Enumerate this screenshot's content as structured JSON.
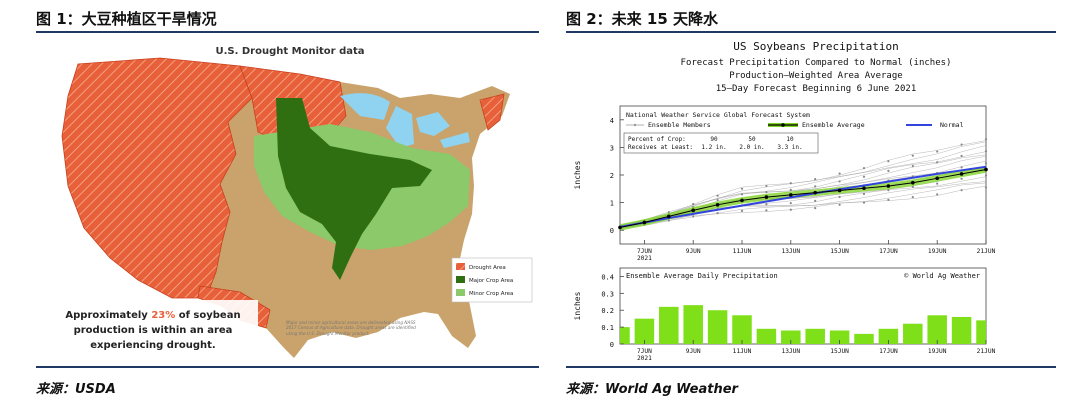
{
  "left": {
    "title": "图 1：大豆种植区干旱情况",
    "source": "来源：USDA",
    "map": {
      "heading": "U.S. Drought Monitor data",
      "legend": [
        "Drought Area",
        "Major Crop Area",
        "Minor Crop Area"
      ],
      "annotation_line1": "Approximately ",
      "annotation_pct": "23%",
      "annotation_line1b": " of soybean",
      "annotation_line2": "production is within an area",
      "annotation_line3": "experiencing drought.",
      "footnote": "Major and minor agricultural areas are delineated using NASS 2017 Census of Agriculture data. Drought areas are identified using the U.S. Drought Monitor product.",
      "colors": {
        "land": "#c9a36b",
        "drought": "#e8603a",
        "major": "#2f6f12",
        "minor": "#8bc96a",
        "water": "#8fd3f0"
      }
    }
  },
  "right": {
    "title": "图 2：未来 15 天降水",
    "source": "来源：World Ag Weather"
  },
  "chart_data": [
    {
      "type": "line",
      "title": "US Soybeans Precipitation",
      "subtitle_lines": [
        "Forecast Precipitation Compared to Normal (inches)",
        "Production–Weighted Area Average",
        "15–Day Forecast Beginning 6 June 2021"
      ],
      "ylabel": "inches",
      "ylim": [
        -0.5,
        4.5
      ],
      "yticks": [
        0,
        1,
        2,
        3,
        4
      ],
      "x_tick_labels": [
        "7JUN",
        "9JUN",
        "11JUN",
        "13JUN",
        "15JUN",
        "17JUN",
        "19JUN",
        "21JUN"
      ],
      "year_label": "2021",
      "x_days": [
        6,
        7,
        8,
        9,
        10,
        11,
        12,
        13,
        14,
        15,
        16,
        17,
        18,
        19,
        20,
        21
      ],
      "legend_header": "National Weather Service Global Forecast System",
      "legend": [
        "Ensemble Members",
        "Ensemble Average",
        "Normal"
      ],
      "percent_table": {
        "row1_label": "Percent of Crop:",
        "row1": [
          "90",
          "50",
          "10"
        ],
        "row2_label": "Receives at Least:",
        "row2": [
          "1.2 in.",
          "2.0 in.",
          "3.3 in."
        ]
      },
      "series": [
        {
          "name": "Ensemble Average",
          "values": [
            0.1,
            0.28,
            0.5,
            0.72,
            0.92,
            1.08,
            1.2,
            1.28,
            1.36,
            1.44,
            1.52,
            1.6,
            1.72,
            1.88,
            2.04,
            2.2
          ]
        },
        {
          "name": "Normal",
          "values": [
            0.12,
            0.28,
            0.44,
            0.59,
            0.74,
            0.89,
            1.04,
            1.19,
            1.34,
            1.48,
            1.62,
            1.76,
            1.9,
            2.04,
            2.17,
            2.3
          ]
        }
      ],
      "member_spread": {
        "low": [
          0.1,
          0.2,
          0.35,
          0.5,
          0.62,
          0.7,
          0.72,
          0.74,
          0.8,
          0.92,
          1.0,
          1.1,
          1.2,
          1.3,
          1.45,
          1.55
        ],
        "high": [
          0.12,
          0.35,
          0.65,
          0.95,
          1.25,
          1.5,
          1.6,
          1.7,
          1.85,
          2.05,
          2.25,
          2.5,
          2.7,
          2.85,
          3.1,
          3.3
        ]
      },
      "colors": {
        "ensemble_avg": "#000000",
        "normal": "#3344dd",
        "members": "#999999",
        "highlight": "#7ed321"
      }
    },
    {
      "type": "bar",
      "title": "Ensemble Average Daily Precipitation",
      "credit": "© World Ag Weather",
      "ylabel": "inches",
      "ylim": [
        0,
        0.45
      ],
      "yticks": [
        0,
        0.1,
        0.2,
        0.3,
        0.4
      ],
      "x_tick_labels": [
        "7JUN",
        "9JUN",
        "11JUN",
        "13JUN",
        "15JUN",
        "17JUN",
        "19JUN",
        "21JUN"
      ],
      "year_label": "2021",
      "categories": [
        "6JUN",
        "7JUN",
        "8JUN",
        "9JUN",
        "10JUN",
        "11JUN",
        "12JUN",
        "13JUN",
        "14JUN",
        "15JUN",
        "16JUN",
        "17JUN",
        "18JUN",
        "19JUN",
        "20JUN",
        "21JUN"
      ],
      "values": [
        0.1,
        0.15,
        0.22,
        0.23,
        0.2,
        0.17,
        0.09,
        0.08,
        0.09,
        0.08,
        0.06,
        0.09,
        0.12,
        0.17,
        0.16,
        0.14
      ],
      "colors": {
        "bar": "#7fe01a"
      }
    }
  ]
}
